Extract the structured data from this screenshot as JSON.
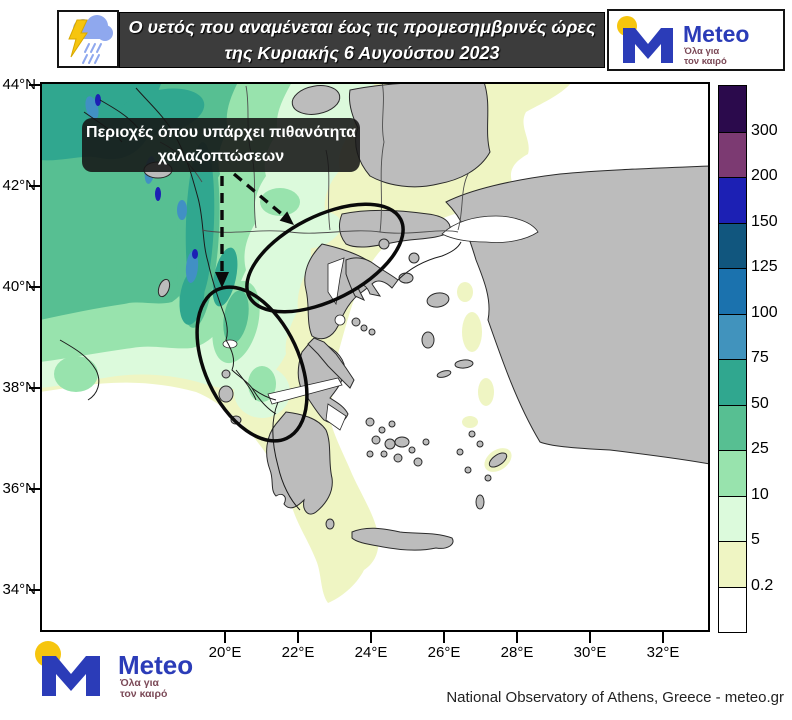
{
  "header": {
    "title_line1": "Ο υετός που αναμένεται έως τις προμεσημβρινές ώρες",
    "title_line2": "της Κυριακής 6 Αυγούστου 2023",
    "storm_icon": "storm-cloud-lightning-rain-icon"
  },
  "logo": {
    "name": "Meteo",
    "tagline_line1": "Όλα για",
    "tagline_line2": "τον καιρό",
    "brand_blue": "#2b3cb8",
    "dot_yellow": "#f6c50e",
    "tagline_color": "#7c4a58"
  },
  "map": {
    "annotation_line1": "Περιοχές όπου υπάρχει πιθανότητα",
    "annotation_line2": "χαλαζοπτώσεων",
    "lat_ticks": [
      "44°N",
      "42°N",
      "40°N",
      "38°N",
      "36°N",
      "34°N"
    ],
    "lon_ticks": [
      "20°E",
      "22°E",
      "24°E",
      "26°E",
      "28°E",
      "30°E",
      "32°E"
    ],
    "land_color": "#bcbcbc",
    "sea_color": "#ffffff"
  },
  "colorbar": {
    "labels_top_to_bottom": [
      "300",
      "200",
      "150",
      "125",
      "100",
      "75",
      "50",
      "25",
      "10",
      "5",
      "0.2"
    ],
    "band_colors_top_to_bottom": [
      "#2b0a4c",
      "#7c3a72",
      "#1c20b4",
      "#11567e",
      "#1b72ae",
      "#4193bd",
      "#30a78f",
      "#57bf92",
      "#98e3ad",
      "#dcfadc",
      "#eff5c3",
      "#ffffff"
    ],
    "scale_boundaries_mm": [
      300,
      200,
      150,
      125,
      100,
      75,
      50,
      25,
      10,
      5,
      0.2
    ]
  },
  "footer": {
    "attribution": "National Observatory of Athens, Greece - meteo.gr"
  }
}
